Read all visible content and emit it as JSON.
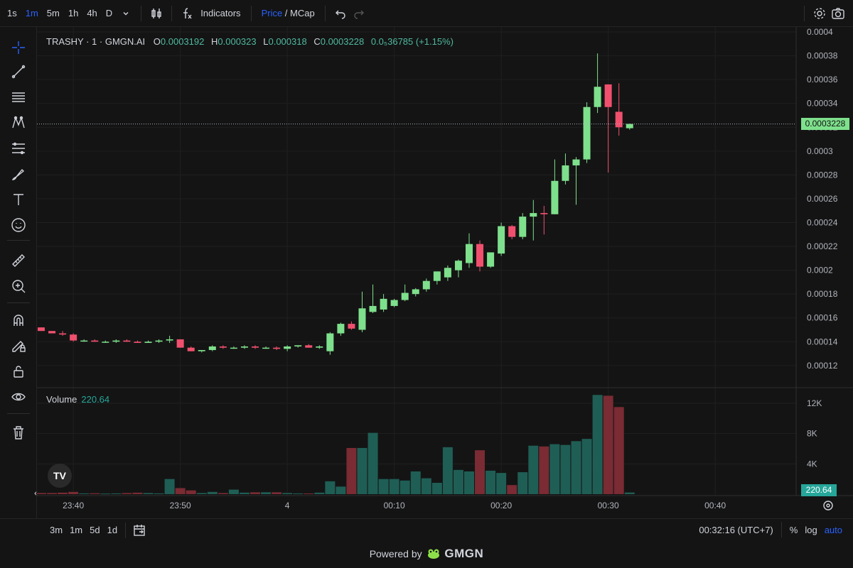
{
  "toolbar": {
    "intervals": [
      "1s",
      "1m",
      "5m",
      "1h",
      "4h",
      "D"
    ],
    "active_interval": "1m",
    "indicators_label": "Indicators",
    "price_label": "Price",
    "sep_label": " / ",
    "mcap_label": "MCap"
  },
  "legend": {
    "symbol": "TRASHY · 1 · GMGN.AI",
    "o_key": "O",
    "o": "0.0003192",
    "h_key": "H",
    "h": "0.000323",
    "l_key": "L",
    "l": "0.000318",
    "c_key": "C",
    "c": "0.0003228",
    "change": "0.0₅36785 (+1.15%)"
  },
  "volume_legend": {
    "label": "Volume",
    "value": "220.64"
  },
  "price_tag": "0.0003228",
  "volume_tag": "220.64",
  "bottombar": {
    "ranges": [
      "3m",
      "1m",
      "5d",
      "1d"
    ],
    "clock": "00:32:16 (UTC+7)",
    "pct": "%",
    "log": "log",
    "auto": "auto"
  },
  "powered": {
    "text": "Powered by",
    "brand": "GMGN"
  },
  "colors": {
    "up": "#7ee08c",
    "down": "#f0506e",
    "vol_up": "#1f5e55",
    "vol_down": "#7a2b33",
    "accent": "#2962ff"
  },
  "chart_data": {
    "type": "candlestick",
    "price_axis": [
      0.00012,
      0.00014,
      0.00016,
      0.00018,
      0.0002,
      0.00022,
      0.00024,
      0.00026,
      0.00028,
      0.0003,
      0.00032,
      0.00034,
      0.00036,
      0.00038,
      0.0004
    ],
    "price_axis_labels": [
      "0.00012",
      "0.00014",
      "0.00016",
      "0.00018",
      "0.0002",
      "0.00022",
      "0.00024",
      "0.00026",
      "0.00028",
      "0.0003",
      "0.00032",
      "0.00034",
      "0.00036",
      "0.00038",
      "0.0004"
    ],
    "price_range": [
      0.000105,
      0.000403
    ],
    "volume_axis": [
      4000,
      8000,
      12000
    ],
    "volume_axis_labels": [
      "4K",
      "8K",
      "12K"
    ],
    "volume_range": [
      0,
      13500
    ],
    "time_axis_labels": [
      "23:40",
      "23:50",
      "4",
      "00:10",
      "00:20",
      "00:30",
      "00:40"
    ],
    "time_axis_index": [
      3,
      13,
      23,
      33,
      43,
      53,
      63
    ],
    "candles": [
      {
        "o": 0.000152,
        "h": 0.000152,
        "l": 0.000149,
        "c": 0.000149,
        "v": 150
      },
      {
        "o": 0.000149,
        "h": 0.000149,
        "l": 0.000147,
        "c": 0.000147,
        "v": 150
      },
      {
        "o": 0.000147,
        "h": 0.000149,
        "l": 0.000145,
        "c": 0.000146,
        "v": 200
      },
      {
        "o": 0.000146,
        "h": 0.000147,
        "l": 0.00014,
        "c": 0.000141,
        "v": 300
      },
      {
        "o": 0.000141,
        "h": 0.000142,
        "l": 0.00014,
        "c": 0.000141,
        "v": 100
      },
      {
        "o": 0.000141,
        "h": 0.000142,
        "l": 0.00014,
        "c": 0.00014,
        "v": 120
      },
      {
        "o": 0.00014,
        "h": 0.000141,
        "l": 0.000139,
        "c": 0.00014,
        "v": 80
      },
      {
        "o": 0.00014,
        "h": 0.000142,
        "l": 0.000139,
        "c": 0.000141,
        "v": 100
      },
      {
        "o": 0.000141,
        "h": 0.000142,
        "l": 0.00014,
        "c": 0.00014,
        "v": 150
      },
      {
        "o": 0.00014,
        "h": 0.000141,
        "l": 0.000139,
        "c": 0.000139,
        "v": 200
      },
      {
        "o": 0.000139,
        "h": 0.000141,
        "l": 0.000139,
        "c": 0.00014,
        "v": 150
      },
      {
        "o": 0.00014,
        "h": 0.000142,
        "l": 0.000139,
        "c": 0.000141,
        "v": 100
      },
      {
        "o": 0.000141,
        "h": 0.000145,
        "l": 0.000139,
        "c": 0.000142,
        "v": 2000
      },
      {
        "o": 0.000142,
        "h": 0.000142,
        "l": 0.000135,
        "c": 0.000135,
        "v": 800
      },
      {
        "o": 0.000135,
        "h": 0.000136,
        "l": 0.000132,
        "c": 0.000132,
        "v": 500
      },
      {
        "o": 0.000132,
        "h": 0.000133,
        "l": 0.000131,
        "c": 0.000133,
        "v": 150
      },
      {
        "o": 0.000133,
        "h": 0.000137,
        "l": 0.000132,
        "c": 0.000136,
        "v": 300
      },
      {
        "o": 0.000136,
        "h": 0.000137,
        "l": 0.000134,
        "c": 0.000135,
        "v": 150
      },
      {
        "o": 0.000135,
        "h": 0.000136,
        "l": 0.000134,
        "c": 0.000135,
        "v": 600
      },
      {
        "o": 0.000135,
        "h": 0.000137,
        "l": 0.000134,
        "c": 0.000136,
        "v": 200
      },
      {
        "o": 0.000136,
        "h": 0.000137,
        "l": 0.000134,
        "c": 0.000135,
        "v": 250
      },
      {
        "o": 0.000135,
        "h": 0.000136,
        "l": 0.000134,
        "c": 0.000135,
        "v": 250
      },
      {
        "o": 0.000135,
        "h": 0.000136,
        "l": 0.000133,
        "c": 0.000134,
        "v": 250
      },
      {
        "o": 0.000134,
        "h": 0.000137,
        "l": 0.000132,
        "c": 0.000136,
        "v": 150
      },
      {
        "o": 0.000136,
        "h": 0.000137,
        "l": 0.000135,
        "c": 0.000137,
        "v": 100
      },
      {
        "o": 0.000137,
        "h": 0.000138,
        "l": 0.000135,
        "c": 0.000135,
        "v": 100
      },
      {
        "o": 0.000135,
        "h": 0.000137,
        "l": 0.000134,
        "c": 0.000136,
        "v": 200
      },
      {
        "o": 0.000132,
        "h": 0.000148,
        "l": 0.000129,
        "c": 0.000147,
        "v": 1700
      },
      {
        "o": 0.000147,
        "h": 0.000156,
        "l": 0.000145,
        "c": 0.000155,
        "v": 1000
      },
      {
        "o": 0.000155,
        "h": 0.000157,
        "l": 0.00015,
        "c": 0.000151,
        "v": 6100
      },
      {
        "o": 0.00015,
        "h": 0.000182,
        "l": 0.000148,
        "c": 0.000168,
        "v": 6100
      },
      {
        "o": 0.000165,
        "h": 0.000188,
        "l": 0.000164,
        "c": 0.00017,
        "v": 8100
      },
      {
        "o": 0.000167,
        "h": 0.00018,
        "l": 0.000165,
        "c": 0.000176,
        "v": 2000
      },
      {
        "o": 0.00017,
        "h": 0.000176,
        "l": 0.000169,
        "c": 0.000175,
        "v": 2000
      },
      {
        "o": 0.000175,
        "h": 0.000188,
        "l": 0.000174,
        "c": 0.000181,
        "v": 1800
      },
      {
        "o": 0.00018,
        "h": 0.000185,
        "l": 0.000178,
        "c": 0.000184,
        "v": 3000
      },
      {
        "o": 0.000184,
        "h": 0.000193,
        "l": 0.000182,
        "c": 0.000191,
        "v": 2100
      },
      {
        "o": 0.000191,
        "h": 0.000199,
        "l": 0.000188,
        "c": 0.000199,
        "v": 1500
      },
      {
        "o": 0.000194,
        "h": 0.000204,
        "l": 0.000191,
        "c": 0.000202,
        "v": 6200
      },
      {
        "o": 0.0002,
        "h": 0.000209,
        "l": 0.000194,
        "c": 0.000208,
        "v": 3200
      },
      {
        "o": 0.000206,
        "h": 0.000231,
        "l": 0.000202,
        "c": 0.000222,
        "v": 3000
      },
      {
        "o": 0.000222,
        "h": 0.000225,
        "l": 0.000199,
        "c": 0.000203,
        "v": 5800
      },
      {
        "o": 0.000203,
        "h": 0.000215,
        "l": 0.000202,
        "c": 0.000215,
        "v": 3100
      },
      {
        "o": 0.000214,
        "h": 0.00024,
        "l": 0.000212,
        "c": 0.000237,
        "v": 2800
      },
      {
        "o": 0.000237,
        "h": 0.000238,
        "l": 0.000226,
        "c": 0.000228,
        "v": 1200
      },
      {
        "o": 0.000228,
        "h": 0.000248,
        "l": 0.000226,
        "c": 0.000245,
        "v": 2900
      },
      {
        "o": 0.000245,
        "h": 0.000259,
        "l": 0.000225,
        "c": 0.000248,
        "v": 6400
      },
      {
        "o": 0.000248,
        "h": 0.000254,
        "l": 0.00023,
        "c": 0.000247,
        "v": 6300
      },
      {
        "o": 0.000247,
        "h": 0.000293,
        "l": 0.000247,
        "c": 0.000275,
        "v": 6600
      },
      {
        "o": 0.000275,
        "h": 0.000298,
        "l": 0.000272,
        "c": 0.000288,
        "v": 6500
      },
      {
        "o": 0.000288,
        "h": 0.000295,
        "l": 0.000255,
        "c": 0.000293,
        "v": 7000
      },
      {
        "o": 0.000293,
        "h": 0.000341,
        "l": 0.00029,
        "c": 0.000337,
        "v": 7300
      },
      {
        "o": 0.000337,
        "h": 0.000382,
        "l": 0.000332,
        "c": 0.000354,
        "v": 13100
      },
      {
        "o": 0.000356,
        "h": 0.000356,
        "l": 0.000282,
        "c": 0.000337,
        "v": 13000
      },
      {
        "o": 0.000333,
        "h": 0.000357,
        "l": 0.000313,
        "c": 0.00032,
        "v": 11500
      },
      {
        "o": 0.0003192,
        "h": 0.000323,
        "l": 0.000318,
        "c": 0.0003228,
        "v": 221
      }
    ]
  }
}
